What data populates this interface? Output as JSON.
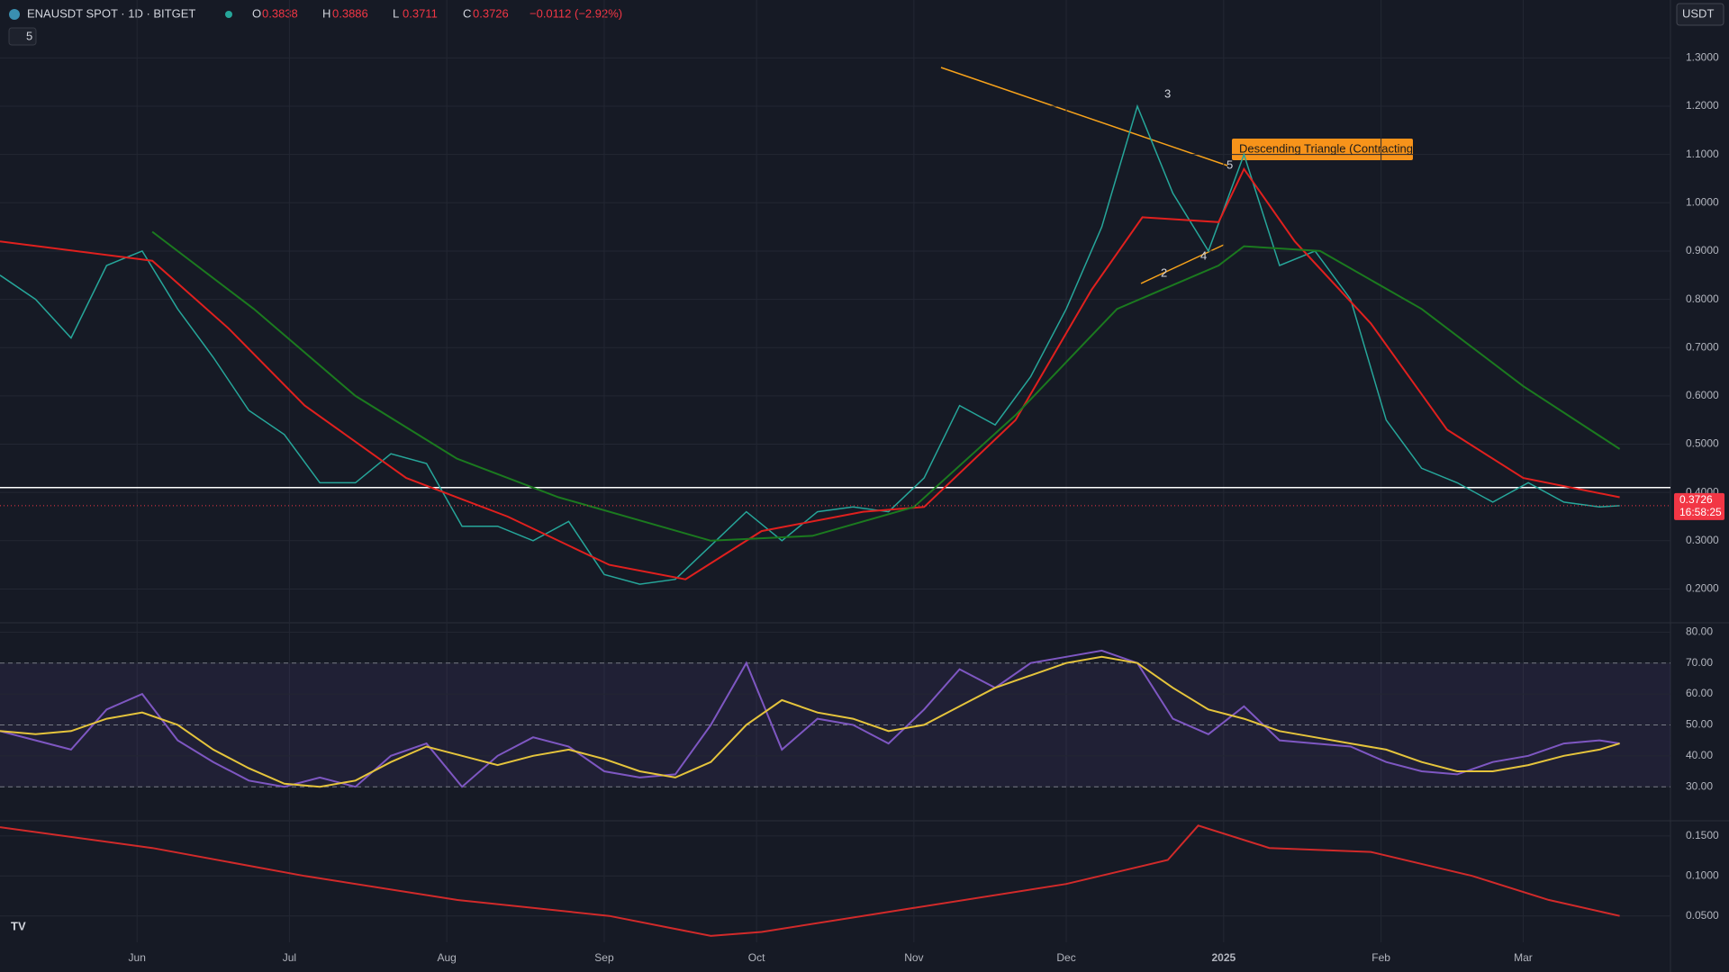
{
  "header": {
    "symbol": "ENAUSDT SPOT · 1D · BITGET",
    "ohlc": [
      {
        "label": "O",
        "value": 0.3838
      },
      {
        "label": "H",
        "value": 0.3886
      },
      {
        "label": "L",
        "value": 0.3711
      },
      {
        "label": "C",
        "value": 0.3726
      }
    ],
    "change": "−0.0112 (−2.92%)",
    "indicator_count": "5",
    "currency": "USDT"
  },
  "chart_data": [
    {
      "type": "line",
      "xlim": [
        0,
        329
      ],
      "xticks": [
        {
          "value": 27,
          "label": "Jun"
        },
        {
          "value": 57,
          "label": "Jul"
        },
        {
          "value": 88,
          "label": "Aug"
        },
        {
          "value": 119,
          "label": "Sep"
        },
        {
          "value": 149,
          "label": "Oct"
        },
        {
          "value": 180,
          "label": "Nov"
        },
        {
          "value": 210,
          "label": "Dec"
        },
        {
          "value": 241,
          "label": "2025"
        },
        {
          "value": 272,
          "label": "Feb"
        },
        {
          "value": 300,
          "label": "Mar"
        }
      ],
      "ylim": [
        0.13,
        1.42
      ],
      "yticks": [
        {
          "value": 0.2,
          "label": "0.2000"
        },
        {
          "value": 0.3,
          "label": "0.3000"
        },
        {
          "value": 0.4,
          "label": "0.4000"
        },
        {
          "value": 0.5,
          "label": "0.5000"
        },
        {
          "value": 0.6,
          "label": "0.6000"
        },
        {
          "value": 0.7,
          "label": "0.7000"
        },
        {
          "value": 0.8,
          "label": "0.8000"
        },
        {
          "value": 0.9,
          "label": "0.9000"
        },
        {
          "value": 1.0,
          "label": "1.0000"
        },
        {
          "value": 1.1,
          "label": "1.1000"
        },
        {
          "value": 1.2,
          "label": "1.2000"
        },
        {
          "value": 1.3,
          "label": "1.3000"
        }
      ],
      "grid": true,
      "hline": 0.41,
      "last_price": 0.3726,
      "countdown": "16:58:25",
      "annotation": "Descending Triangle (Contracting)",
      "pattern_points": [
        "2",
        "3",
        "4",
        "5"
      ],
      "series": [
        {
          "color": "#26a69a",
          "x": [
            0,
            7,
            14,
            21,
            28,
            35,
            42,
            49,
            56,
            63,
            70,
            77,
            84,
            91,
            98,
            105,
            112,
            119,
            126,
            133,
            140,
            147,
            154,
            161,
            168,
            175,
            182,
            189,
            196,
            203,
            210,
            217,
            224,
            231,
            238,
            245,
            252,
            259,
            266,
            273,
            280,
            287,
            294,
            301,
            308,
            315,
            319
          ],
          "values": [
            0.85,
            0.8,
            0.72,
            0.87,
            0.9,
            0.78,
            0.68,
            0.57,
            0.52,
            0.42,
            0.42,
            0.48,
            0.46,
            0.33,
            0.33,
            0.3,
            0.34,
            0.23,
            0.21,
            0.22,
            0.29,
            0.36,
            0.3,
            0.36,
            0.37,
            0.36,
            0.43,
            0.58,
            0.54,
            0.64,
            0.78,
            0.95,
            1.2,
            1.02,
            0.9,
            1.1,
            0.87,
            0.9,
            0.8,
            0.55,
            0.45,
            0.42,
            0.38,
            0.42,
            0.38,
            0.37,
            0.3726
          ]
        },
        {
          "color": "#e0201e",
          "x": [
            0,
            30,
            45,
            60,
            80,
            100,
            120,
            135,
            150,
            170,
            182,
            200,
            215,
            225,
            240,
            245,
            255,
            270,
            285,
            300,
            319
          ],
          "values": [
            0.92,
            0.88,
            0.74,
            0.58,
            0.43,
            0.35,
            0.25,
            0.22,
            0.32,
            0.36,
            0.37,
            0.55,
            0.82,
            0.97,
            0.96,
            1.07,
            0.92,
            0.75,
            0.53,
            0.43,
            0.39
          ]
        },
        {
          "color": "#1b7a1f",
          "x": [
            30,
            50,
            70,
            90,
            110,
            130,
            140,
            160,
            180,
            200,
            220,
            240,
            245,
            260,
            280,
            300,
            319
          ],
          "values": [
            0.94,
            0.78,
            0.6,
            0.47,
            0.39,
            0.33,
            0.3,
            0.31,
            0.37,
            0.56,
            0.78,
            0.87,
            0.91,
            0.9,
            0.78,
            0.62,
            0.49
          ]
        }
      ]
    },
    {
      "type": "line",
      "xlim": [
        0,
        329
      ],
      "ylim": [
        19,
        83
      ],
      "yticks": [
        {
          "value": 30,
          "label": "30.00"
        },
        {
          "value": 40,
          "label": "40.00"
        },
        {
          "value": 50,
          "label": "50.00"
        },
        {
          "value": 60,
          "label": "60.00"
        },
        {
          "value": 70,
          "label": "70.00"
        },
        {
          "value": 80,
          "label": "80.00"
        }
      ],
      "bands": [
        30,
        50,
        70
      ],
      "series": [
        {
          "color": "#7e57c2",
          "x": [
            0,
            7,
            14,
            21,
            28,
            35,
            42,
            49,
            56,
            63,
            70,
            77,
            84,
            91,
            98,
            105,
            112,
            119,
            126,
            133,
            140,
            147,
            154,
            161,
            168,
            175,
            182,
            189,
            196,
            203,
            210,
            217,
            224,
            231,
            238,
            245,
            252,
            259,
            266,
            273,
            280,
            287,
            294,
            301,
            308,
            315,
            319
          ],
          "values": [
            48,
            45,
            42,
            55,
            60,
            45,
            38,
            32,
            30,
            33,
            30,
            40,
            44,
            30,
            40,
            46,
            43,
            35,
            33,
            34,
            50,
            70,
            42,
            52,
            50,
            44,
            55,
            68,
            62,
            70,
            72,
            74,
            70,
            52,
            47,
            56,
            45,
            44,
            43,
            38,
            35,
            34,
            38,
            40,
            44,
            45,
            44
          ]
        },
        {
          "color": "#e5c43c",
          "x": [
            0,
            7,
            14,
            21,
            28,
            35,
            42,
            49,
            56,
            63,
            70,
            77,
            84,
            91,
            98,
            105,
            112,
            119,
            126,
            133,
            140,
            147,
            154,
            161,
            168,
            175,
            182,
            189,
            196,
            203,
            210,
            217,
            224,
            231,
            238,
            245,
            252,
            259,
            266,
            273,
            280,
            287,
            294,
            301,
            308,
            315,
            319
          ],
          "values": [
            48,
            47,
            48,
            52,
            54,
            50,
            42,
            36,
            31,
            30,
            32,
            38,
            43,
            40,
            37,
            40,
            42,
            39,
            35,
            33,
            38,
            50,
            58,
            54,
            52,
            48,
            50,
            56,
            62,
            66,
            70,
            72,
            70,
            62,
            55,
            52,
            48,
            46,
            44,
            42,
            38,
            35,
            35,
            37,
            40,
            42,
            44
          ]
        }
      ]
    },
    {
      "type": "line",
      "xlim": [
        0,
        329
      ],
      "ylim": [
        0.017,
        0.169
      ],
      "yticks": [
        {
          "value": 0.05,
          "label": "0.0500"
        },
        {
          "value": 0.1,
          "label": "0.1000"
        },
        {
          "value": 0.15,
          "label": "0.1500"
        }
      ],
      "series": [
        {
          "color": "#d12a2a",
          "x": [
            0,
            30,
            60,
            90,
            120,
            140,
            150,
            180,
            210,
            230,
            236,
            250,
            270,
            290,
            305,
            319
          ],
          "values": [
            0.161,
            0.135,
            0.1,
            0.07,
            0.05,
            0.025,
            0.03,
            0.06,
            0.09,
            0.12,
            0.163,
            0.135,
            0.13,
            0.1,
            0.07,
            0.05
          ]
        }
      ]
    }
  ]
}
